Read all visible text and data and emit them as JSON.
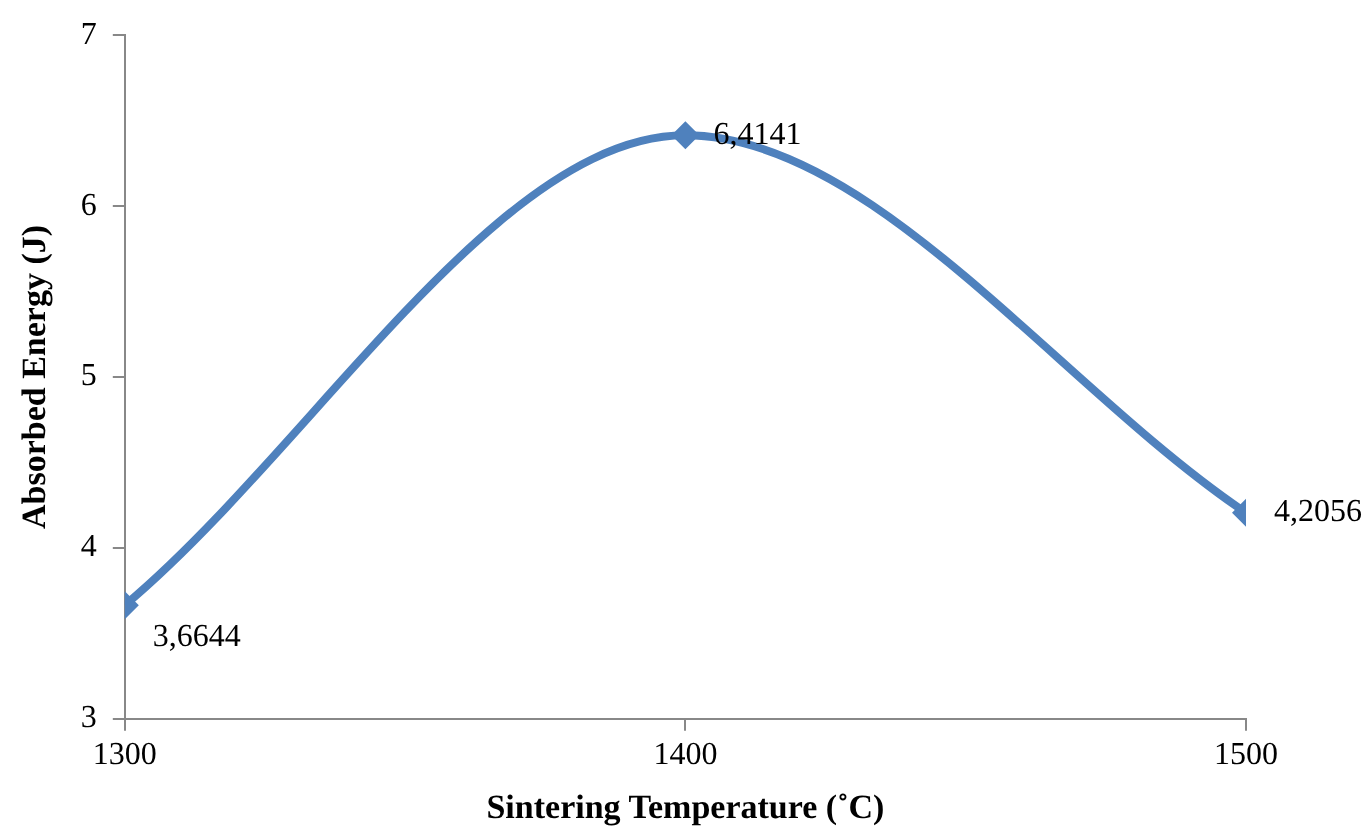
{
  "chart_data": {
    "type": "line",
    "xlabel": "Sintering Temperature (˚C)",
    "ylabel": "Absorbed Energy (J)",
    "x": [
      1300,
      1400,
      1500
    ],
    "series": [
      {
        "color": "#4f81bd",
        "values": [
          3.6644,
          6.4141,
          4.2056
        ],
        "value_labels": [
          "3,6644",
          "6,4141",
          "4,2056"
        ]
      }
    ],
    "xlim": [
      1300,
      1500
    ],
    "xticks": [
      1300,
      1400,
      1500
    ],
    "ylim": [
      3,
      7
    ],
    "yticks": [
      3,
      4,
      5,
      6,
      7
    ],
    "grid": false,
    "legend": false,
    "marker": "diamond",
    "line_style": "solid"
  }
}
